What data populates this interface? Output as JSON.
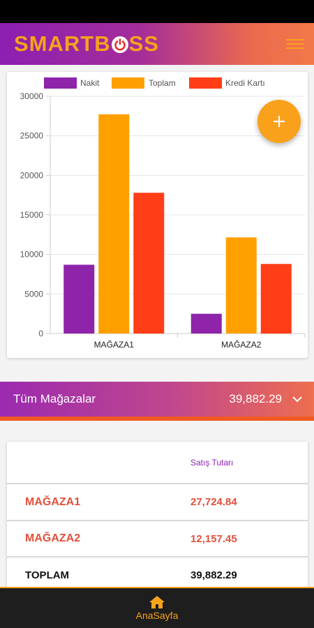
{
  "app": {
    "logo_pre": "SMARTB",
    "logo_post": "SS",
    "brand_color": "#f7a21b"
  },
  "chart_data": {
    "type": "bar",
    "categories": [
      "MAĞAZA1",
      "MAĞAZA2"
    ],
    "series": [
      {
        "name": "Nakit",
        "color": "#8e24aa",
        "values": [
          8700,
          2500
        ]
      },
      {
        "name": "Toplam",
        "color": "#ffa000",
        "values": [
          27724.84,
          12157.45
        ]
      },
      {
        "name": "Kredi Kartı",
        "color": "#ff3d17",
        "values": [
          17800,
          8800
        ]
      }
    ],
    "yticks": [
      0,
      5000,
      10000,
      15000,
      20000,
      25000,
      30000
    ],
    "ylim": [
      0,
      30000
    ],
    "grid": true,
    "legend": "top"
  },
  "fab": {
    "icon": "plus-icon",
    "symbol": "+"
  },
  "store_selector": {
    "label": "Tüm Mağazalar",
    "value": "39,882.29",
    "icon": "chevron-down-icon"
  },
  "table": {
    "header": "Satış Tutarı",
    "rows": [
      {
        "name": "MAĞAZA1",
        "value": "27,724.84"
      },
      {
        "name": "MAĞAZA2",
        "value": "12,157.45"
      }
    ],
    "total": {
      "name": "TOPLAM",
      "value": "39,882.29"
    }
  },
  "bottom_nav": {
    "items": [
      {
        "label": "AnaSayfa",
        "icon": "home-icon"
      }
    ]
  }
}
